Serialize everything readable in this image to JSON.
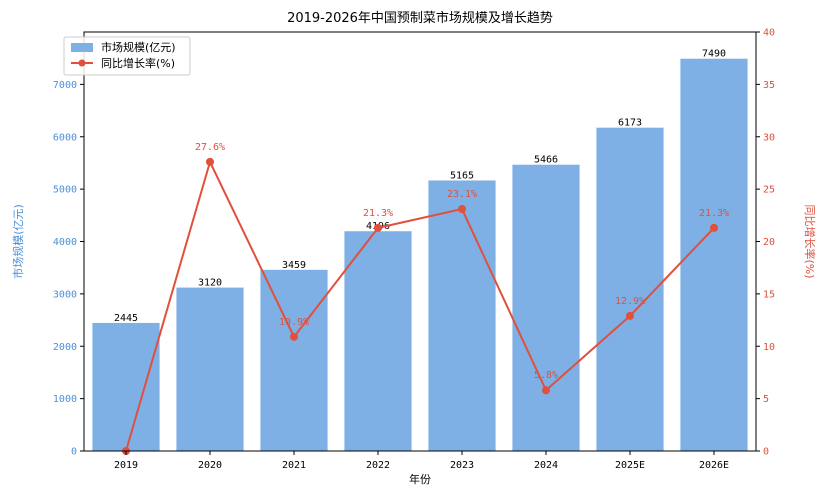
{
  "chart_data": {
    "type": "bar+line",
    "title": "2019-2026年中国预制菜市场规模及增长趋势",
    "xlabel": "年份",
    "ylabel_left": "市场规模(亿元)",
    "ylabel_right": "同比增长率(%)",
    "categories": [
      "2019",
      "2020",
      "2021",
      "2022",
      "2023",
      "2024",
      "2025E",
      "2026E"
    ],
    "ylim_left": [
      0,
      8000
    ],
    "yticks_left": [
      0,
      1000,
      2000,
      3000,
      4000,
      5000,
      6000,
      7000
    ],
    "ylim_right": [
      0,
      40
    ],
    "yticks_right": [
      0,
      5,
      10,
      15,
      20,
      25,
      30,
      35,
      40
    ],
    "series": [
      {
        "name": "市场规模(亿元)",
        "type": "bar",
        "axis": "left",
        "color": "#7eb0e6",
        "values": [
          2445,
          3120,
          3459,
          4196,
          5165,
          5466,
          6173,
          7490
        ],
        "labels": [
          "2445",
          "3120",
          "3459",
          "4196",
          "5165",
          "5466",
          "6173",
          "7490"
        ]
      },
      {
        "name": "同比增长率(%)",
        "type": "line",
        "axis": "right",
        "color": "#e0503c",
        "values": [
          0,
          27.6,
          10.9,
          21.3,
          23.1,
          5.8,
          12.9,
          21.3
        ],
        "labels": [
          "",
          "27.6%",
          "10.9%",
          "21.3%",
          "23.1%",
          "5.8%",
          "12.9%",
          "21.3%"
        ]
      }
    ],
    "left_axis_color": "#4a90d9",
    "right_axis_color": "#e0503c",
    "legend": "top-left",
    "grid": false
  }
}
